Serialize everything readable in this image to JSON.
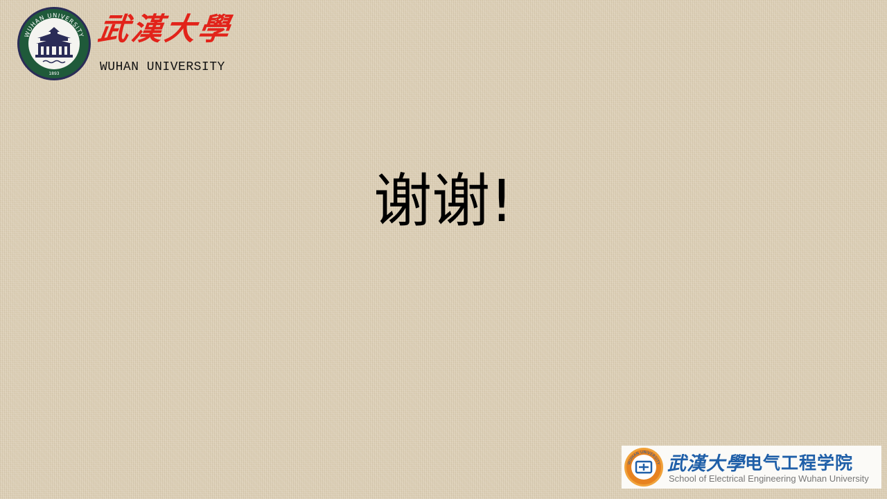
{
  "header": {
    "logo_icon": "wuhan-university-seal",
    "seal_text": "WUHAN UNIVERSITY",
    "seal_year": "1893",
    "name_cn": "武漢大學",
    "name_en": "WUHAN UNIVERSITY"
  },
  "main": {
    "title": "谢谢!"
  },
  "footer": {
    "emblem_icon": "electrical-school-emblem",
    "emblem_text": "WUHAN UNIVERSITY",
    "university_cn": "武漢大學",
    "school_cn": "电气工程学院",
    "school_en": "School of Electrical Engineering Wuhan University"
  },
  "colors": {
    "background": "#dccfb6",
    "red_accent": "#e2231a",
    "blue_accent": "#1f5fa8",
    "seal_navy": "#2a2c57",
    "seal_green": "#1f5a3a"
  }
}
